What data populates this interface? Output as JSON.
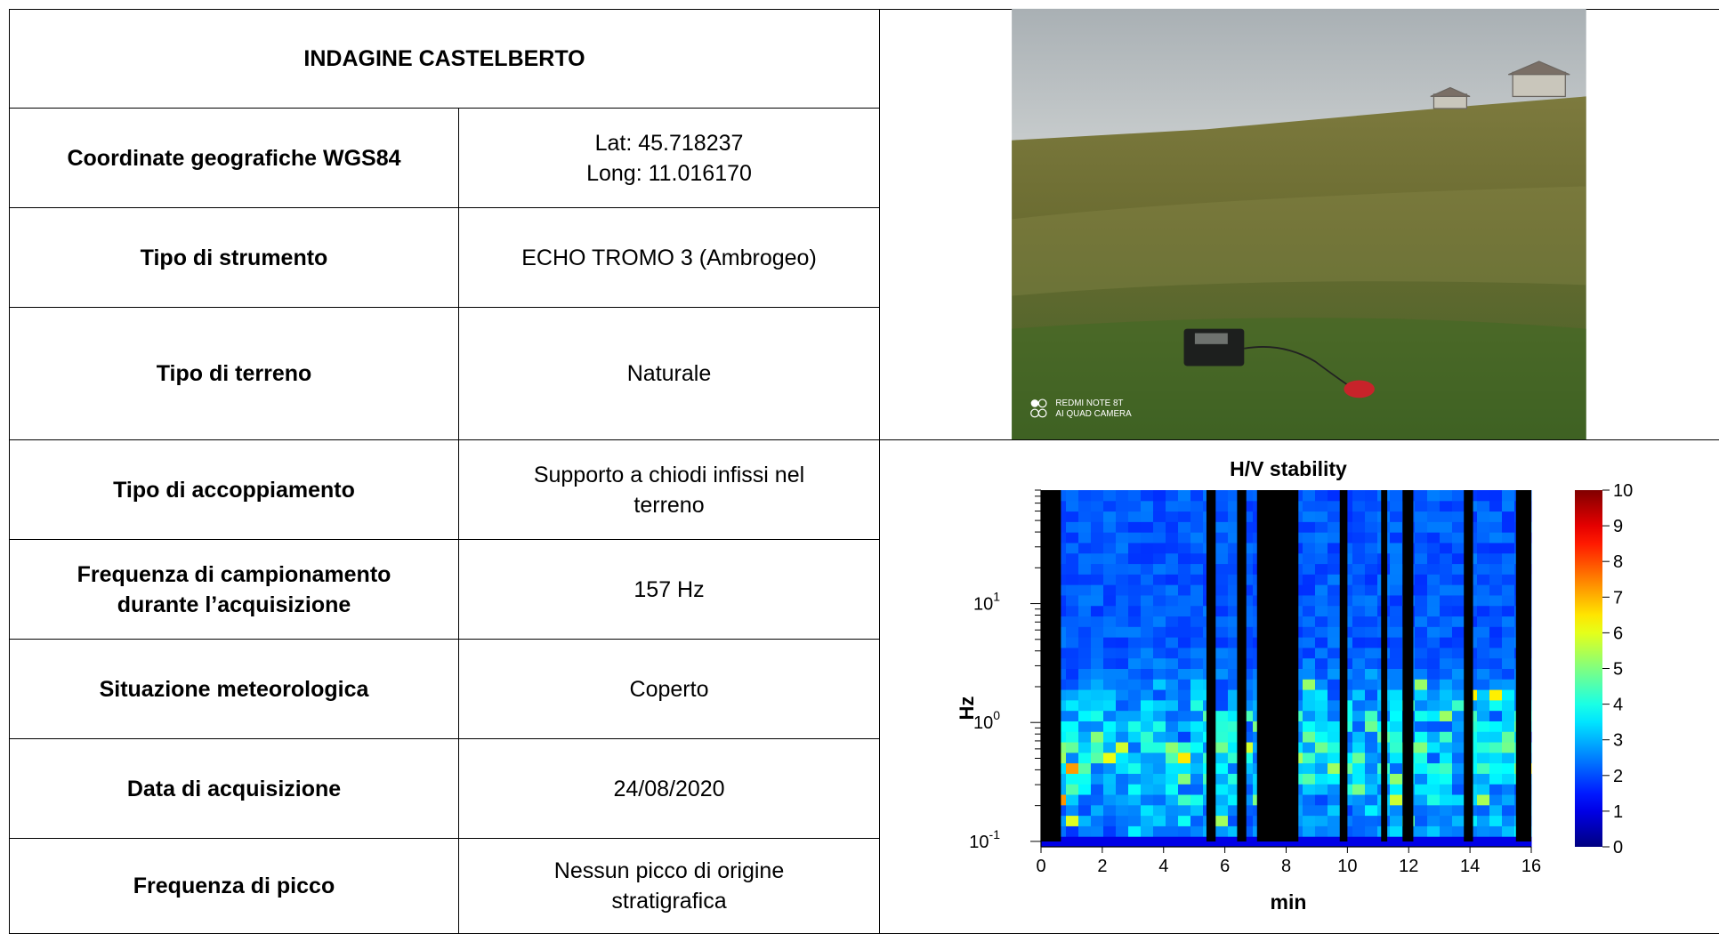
{
  "table": {
    "title": "INDAGINE CASTELBERTO",
    "rows": [
      {
        "label": [
          "Coordinate geografiche WGS84"
        ],
        "value": [
          "Lat: 45.718237",
          "Long: 11.016170"
        ]
      },
      {
        "label": [
          "Tipo di strumento"
        ],
        "value": [
          "ECHO TROMO 3 (Ambrogeo)"
        ]
      },
      {
        "label": [
          "Tipo di terreno"
        ],
        "value": [
          "Naturale"
        ]
      },
      {
        "label": [
          "Tipo di accoppiamento"
        ],
        "value": [
          "Supporto a chiodi infissi nel",
          "terreno"
        ]
      },
      {
        "label": [
          "Frequenza di campionamento",
          "durante l’acquisizione"
        ],
        "value": [
          "157 Hz"
        ]
      },
      {
        "label": [
          "Situazione meteorologica"
        ],
        "value": [
          "Coperto"
        ]
      },
      {
        "label": [
          "Data di acquisizione"
        ],
        "value": [
          "24/08/2020"
        ]
      },
      {
        "label": [
          "Frequenza di picco"
        ],
        "value": [
          "Nessun picco di origine",
          "stratigrafica"
        ]
      }
    ]
  },
  "photo": {
    "watermark": [
      "REDMI NOTE 8T",
      "AI QUAD CAMERA"
    ]
  },
  "chart_data": {
    "type": "heatmap",
    "title": "H/V stability",
    "xlabel": "min",
    "ylabel": "Hz",
    "xlim": [
      0,
      16
    ],
    "xticks": [
      0,
      2,
      4,
      6,
      8,
      10,
      12,
      14,
      16
    ],
    "ylim": [
      0.09,
      90
    ],
    "log_y": true,
    "yticks": [
      {
        "value": 0.1,
        "label": "10",
        "exponent": "-1"
      },
      {
        "value": 1,
        "label": "10",
        "exponent": "0"
      },
      {
        "value": 10,
        "label": "10",
        "exponent": "1"
      }
    ],
    "colorbar": {
      "lim": [
        0,
        10
      ],
      "ticks": [
        0,
        1,
        2,
        3,
        4,
        5,
        6,
        7,
        8,
        9,
        10
      ],
      "colormap": "jet"
    },
    "gaps": [
      [
        0,
        0.65
      ],
      [
        5.4,
        5.7
      ],
      [
        6.4,
        6.7
      ],
      [
        7.05,
        8.4
      ],
      [
        9.75,
        10.0
      ],
      [
        11.1,
        11.3
      ],
      [
        11.8,
        12.15
      ],
      [
        13.8,
        14.1
      ],
      [
        15.5,
        16
      ]
    ],
    "gap_color": "#000000"
  }
}
